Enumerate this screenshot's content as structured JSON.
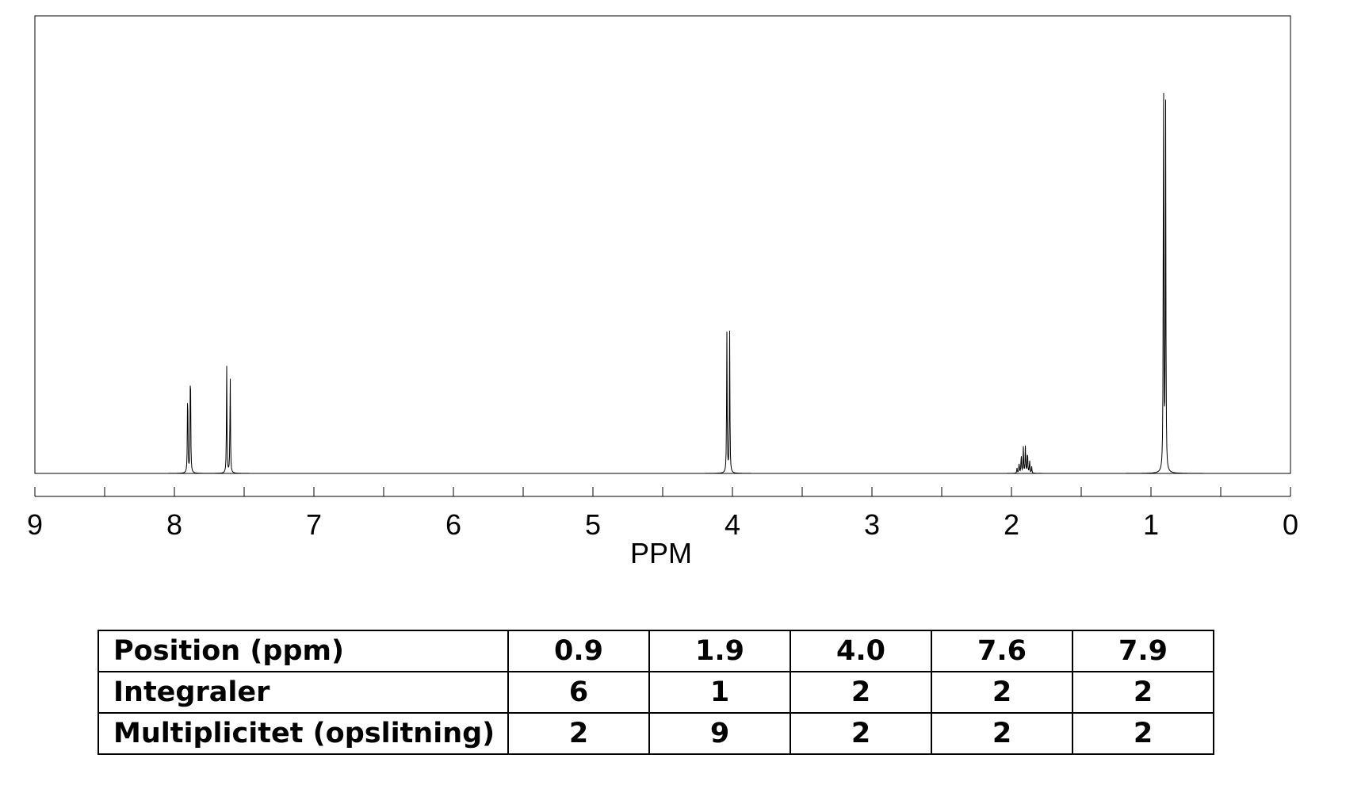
{
  "chart_data": {
    "type": "line",
    "title": "",
    "xlabel": "PPM",
    "ylabel": "",
    "xlim": [
      9,
      0
    ],
    "x_reversed": true,
    "xticks_major": [
      9,
      8,
      7,
      6,
      5,
      4,
      3,
      2,
      1,
      0
    ],
    "xtick_labels": [
      "9",
      "8",
      "7",
      "6",
      "5",
      "4",
      "3",
      "2",
      "1",
      "0"
    ],
    "xticks_minor": [
      8.5,
      7.5,
      6.5,
      5.5,
      4.5,
      3.5,
      2.5,
      1.5,
      0.5
    ],
    "grid": false,
    "ylim": [
      0,
      1
    ],
    "peaks": [
      {
        "ppm": 7.905,
        "height": 0.21
      },
      {
        "ppm": 7.885,
        "height": 0.275
      },
      {
        "ppm": 7.625,
        "height": 0.245
      },
      {
        "ppm": 7.6,
        "height": 0.23
      },
      {
        "ppm": 4.04,
        "height": 0.325
      },
      {
        "ppm": 4.02,
        "height": 0.325
      },
      {
        "ppm": 1.96,
        "height": 0.012
      },
      {
        "ppm": 1.945,
        "height": 0.025
      },
      {
        "ppm": 1.93,
        "height": 0.045
      },
      {
        "ppm": 1.915,
        "height": 0.06
      },
      {
        "ppm": 1.9,
        "height": 0.065
      },
      {
        "ppm": 1.885,
        "height": 0.055
      },
      {
        "ppm": 1.87,
        "height": 0.03
      },
      {
        "ppm": 1.855,
        "height": 0.015
      },
      {
        "ppm": 0.91,
        "height": 1.0
      },
      {
        "ppm": 0.895,
        "height": 0.84
      }
    ]
  },
  "table": {
    "rows": [
      {
        "label": "Position (ppm)",
        "cells": [
          "0.9",
          "1.9",
          "4.0",
          "7.6",
          "7.9"
        ]
      },
      {
        "label": "Integraler",
        "cells": [
          "6",
          "1",
          "2",
          "2",
          "2"
        ]
      },
      {
        "label": "Multiplicitet (opslitning)",
        "cells": [
          "2",
          "9",
          "2",
          "2",
          "2"
        ]
      }
    ]
  }
}
